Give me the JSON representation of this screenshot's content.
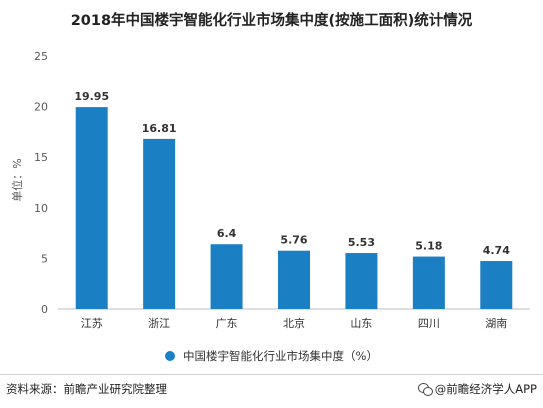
{
  "chart_data": {
    "type": "bar",
    "title": "2018年中国楼宇智能化行业市场集中度(按施工面积)统计情况",
    "ylabel": "单位：%",
    "xlabel": "",
    "categories": [
      "江苏",
      "浙江",
      "广东",
      "北京",
      "山东",
      "四川",
      "湖南"
    ],
    "series": [
      {
        "name": "中国楼宇智能化行业市场集中度（%）",
        "values": [
          19.95,
          16.81,
          6.4,
          5.76,
          5.53,
          5.18,
          4.74
        ],
        "labels": [
          "19.95",
          "16.81",
          "6.4",
          "5.76",
          "5.53",
          "5.18",
          "4.74"
        ],
        "color": "#1b7fc4"
      }
    ],
    "ylim": [
      0,
      25
    ],
    "yticks": [
      0,
      5,
      10,
      15,
      20,
      25
    ],
    "grid": false,
    "legend_position": "bottom"
  },
  "footer": {
    "source": "资料来源：前瞻产业研究院整理",
    "brand": "@前瞻经济学人APP"
  },
  "colors": {
    "bar": "#1b7fc4",
    "axis": "#bfbfbf",
    "tick_text": "#595959"
  }
}
